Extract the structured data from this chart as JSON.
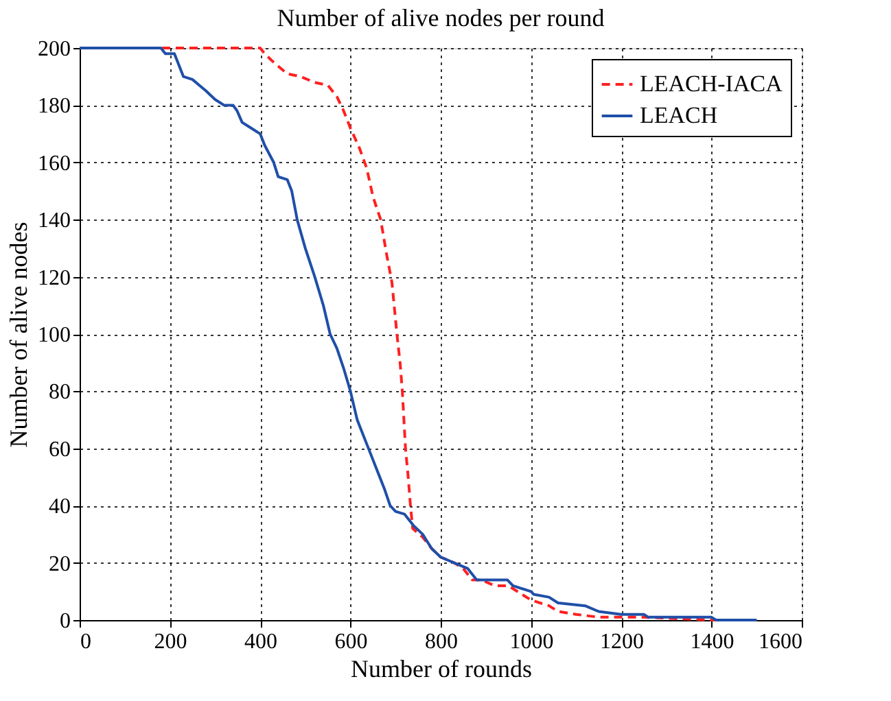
{
  "chart_data": {
    "type": "line",
    "title": "Number of alive nodes per round",
    "xlabel": "Number of rounds",
    "ylabel": "Number of alive nodes",
    "xlim": [
      0,
      1600
    ],
    "xticks": [
      0,
      200,
      400,
      600,
      800,
      1000,
      1200,
      1400,
      1600
    ],
    "ylim": [
      0,
      200
    ],
    "yticks": [
      0,
      20,
      40,
      60,
      80,
      100,
      120,
      140,
      160,
      180,
      200
    ],
    "grid": true,
    "legend": "top right",
    "marker": "none",
    "series": [
      {
        "name": "LEACH-IACA",
        "color": "#ff2020",
        "line_style": "dashed",
        "x": [
          0,
          400,
          410,
          430,
          460,
          490,
          520,
          550,
          570,
          585,
          600,
          620,
          636,
          650,
          667,
          680,
          692,
          703,
          710,
          715,
          722,
          728,
          733,
          738,
          760,
          780,
          800,
          830,
          850,
          870,
          890,
          920,
          950,
          980,
          1000,
          1040,
          1060,
          1100,
          1150,
          1250,
          1400,
          1500
        ],
        "values": [
          200,
          200,
          198,
          195,
          191,
          190,
          188,
          187,
          183,
          178,
          172,
          165,
          158,
          148,
          140,
          128,
          118,
          100,
          90,
          80,
          60,
          50,
          40,
          32,
          29,
          25,
          22,
          20,
          18,
          14,
          14,
          12,
          12,
          9,
          7,
          5,
          3,
          2,
          1,
          1,
          0,
          0
        ]
      },
      {
        "name": "LEACH",
        "color": "#1f4fa8",
        "line_style": "solid",
        "x": [
          0,
          180,
          190,
          210,
          220,
          230,
          250,
          265,
          280,
          300,
          320,
          340,
          349,
          360,
          380,
          400,
          410,
          420,
          430,
          440,
          460,
          470,
          482,
          500,
          521,
          540,
          555,
          570,
          585,
          600,
          615,
          630,
          645,
          660,
          675,
          688,
          700,
          720,
          740,
          760,
          780,
          800,
          830,
          860,
          880,
          948,
          960,
          1000,
          1006,
          1040,
          1060,
          1120,
          1150,
          1200,
          1250,
          1260,
          1400,
          1410,
          1500
        ],
        "values": [
          200,
          200,
          198,
          198,
          194,
          190,
          189,
          187,
          185,
          182,
          180,
          180,
          178,
          174,
          172,
          170,
          166,
          163,
          160,
          155,
          154,
          150,
          140,
          130,
          120,
          110,
          100,
          95,
          88,
          80,
          70,
          64,
          58,
          52,
          46,
          40,
          38,
          37,
          33,
          30,
          25,
          22,
          20,
          18,
          14,
          14,
          12,
          10,
          9,
          8,
          6,
          5,
          3,
          2,
          2,
          1,
          1,
          0,
          0
        ]
      }
    ]
  }
}
